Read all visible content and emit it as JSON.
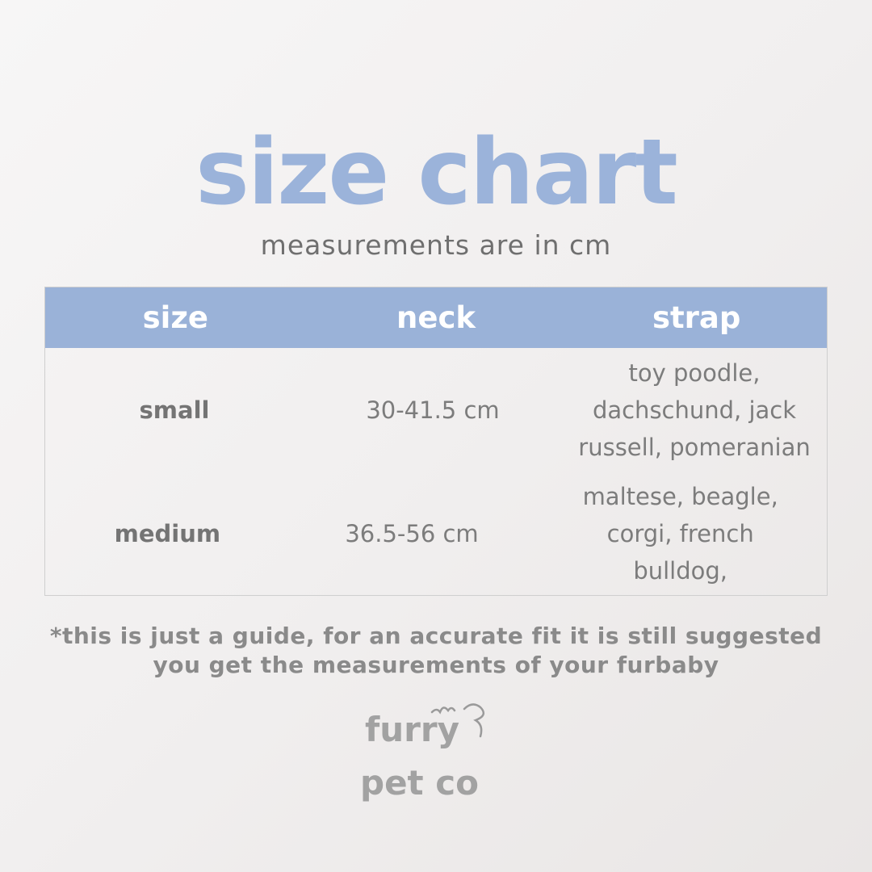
{
  "title": "size chart",
  "subtitle": "measurements are in cm",
  "table": {
    "headers": [
      "size",
      "neck",
      "strap"
    ],
    "rows": [
      {
        "size": "small",
        "neck": "30-41.5 cm",
        "strap": "toy poodle, dachschund, jack russell, pomeranian"
      },
      {
        "size": "medium",
        "neck": "36.5-56 cm",
        "strap": "maltese, beagle, corgi, french bulldog,"
      }
    ]
  },
  "note": {
    "line1": "*this is just a guide, for an accurate fit it is still suggested",
    "line2": "you get the measurements of your furbaby"
  },
  "logo": {
    "line1": "furry",
    "line2": "pet co"
  },
  "colors": {
    "accent": "#9ab2d8",
    "text": "#7a7a7a"
  }
}
